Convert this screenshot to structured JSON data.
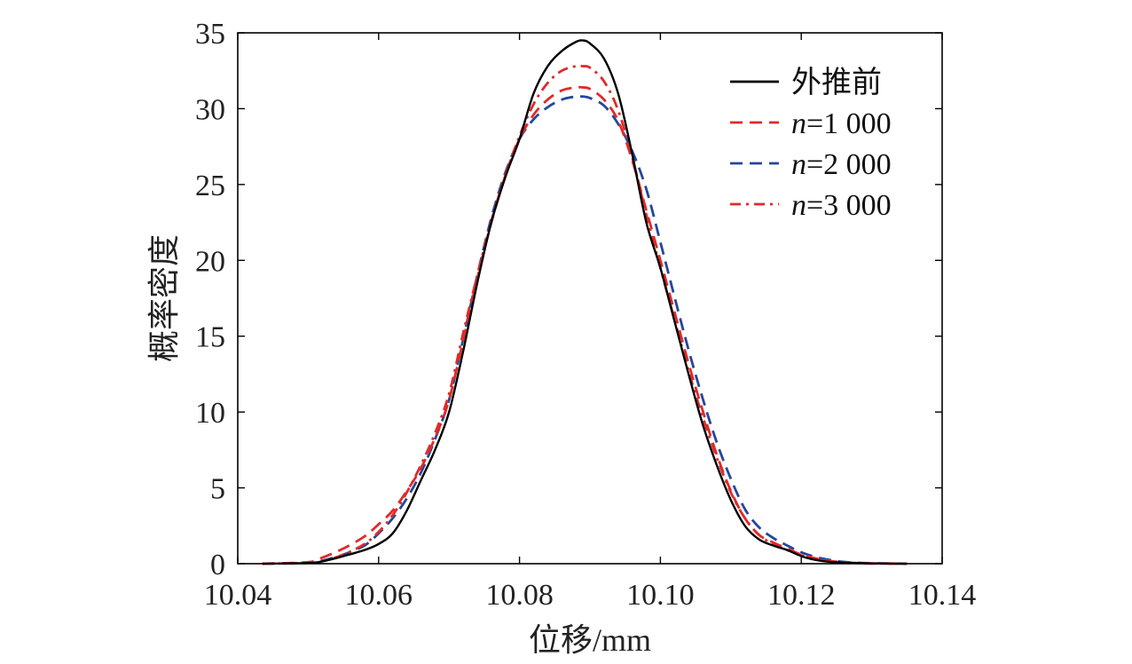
{
  "chart_data": {
    "type": "line",
    "xlabel": "位移/mm",
    "ylabel": "概率密度",
    "xlim": [
      10.04,
      10.14
    ],
    "ylim": [
      0,
      35
    ],
    "x_ticks": [
      "10.04",
      "10.06",
      "10.08",
      "10.10",
      "10.12",
      "10.14"
    ],
    "y_ticks": [
      "0",
      "5",
      "10",
      "15",
      "20",
      "25",
      "30",
      "35"
    ],
    "grid": false,
    "legend_position": "top-right",
    "series": [
      {
        "name": "外推前",
        "legend_prefix": "",
        "legend_suffix": "外推前",
        "color": "#000000",
        "dash": "solid",
        "x": [
          10.0435,
          10.05,
          10.052,
          10.055,
          10.058,
          10.06,
          10.062,
          10.064,
          10.066,
          10.068,
          10.07,
          10.072,
          10.074,
          10.076,
          10.078,
          10.08,
          10.082,
          10.084,
          10.086,
          10.088,
          10.089,
          10.09,
          10.092,
          10.094,
          10.096,
          10.098,
          10.1,
          10.102,
          10.104,
          10.106,
          10.108,
          10.11,
          10.112,
          10.114,
          10.116,
          10.118,
          10.12,
          10.122,
          10.124,
          10.126,
          10.128,
          10.13,
          10.135
        ],
        "y": [
          0,
          0.05,
          0.15,
          0.5,
          0.9,
          1.3,
          2.0,
          3.5,
          5.5,
          7.5,
          10.0,
          14.0,
          18.5,
          22.5,
          25.5,
          28.0,
          31.0,
          32.8,
          33.8,
          34.4,
          34.5,
          34.3,
          33.3,
          31.0,
          27.0,
          22.5,
          19.5,
          16.0,
          12.5,
          9.2,
          6.5,
          4.2,
          2.5,
          1.6,
          1.2,
          0.9,
          0.5,
          0.25,
          0.12,
          0.07,
          0.04,
          0.02,
          0
        ]
      },
      {
        "name": "n=1 000",
        "legend_prefix": "n",
        "legend_suffix": "=1 000",
        "color": "#e02a2a",
        "dash": "dashed",
        "x": [
          10.0435,
          10.05,
          10.052,
          10.055,
          10.058,
          10.06,
          10.062,
          10.064,
          10.066,
          10.068,
          10.07,
          10.072,
          10.074,
          10.076,
          10.078,
          10.08,
          10.082,
          10.084,
          10.086,
          10.088,
          10.089,
          10.09,
          10.092,
          10.094,
          10.096,
          10.098,
          10.1,
          10.102,
          10.104,
          10.106,
          10.108,
          10.11,
          10.112,
          10.114,
          10.116,
          10.118,
          10.12,
          10.122,
          10.124,
          10.126,
          10.128,
          10.13,
          10.135
        ],
        "y": [
          0,
          0.1,
          0.4,
          1.0,
          1.8,
          2.6,
          3.5,
          4.8,
          6.3,
          8.3,
          10.8,
          14.7,
          18.8,
          22.5,
          25.6,
          28.0,
          29.6,
          30.6,
          31.2,
          31.4,
          31.4,
          31.3,
          30.6,
          29.2,
          26.6,
          23.3,
          20.0,
          16.6,
          13.2,
          10.1,
          7.2,
          4.8,
          3.0,
          1.9,
          1.4,
          1.0,
          0.6,
          0.35,
          0.18,
          0.09,
          0.04,
          0.02,
          0
        ]
      },
      {
        "name": "n=2 000",
        "legend_prefix": "n",
        "legend_suffix": "=2 000",
        "color": "#23479a",
        "dash": "dashed",
        "x": [
          10.0435,
          10.05,
          10.052,
          10.055,
          10.058,
          10.06,
          10.062,
          10.064,
          10.066,
          10.068,
          10.07,
          10.072,
          10.074,
          10.076,
          10.078,
          10.08,
          10.082,
          10.084,
          10.086,
          10.088,
          10.089,
          10.09,
          10.092,
          10.094,
          10.096,
          10.098,
          10.1,
          10.102,
          10.104,
          10.106,
          10.108,
          10.11,
          10.112,
          10.114,
          10.116,
          10.118,
          10.12,
          10.122,
          10.124,
          10.126,
          10.128,
          10.13,
          10.135
        ],
        "y": [
          0,
          0.05,
          0.2,
          0.6,
          1.2,
          2.0,
          3.0,
          4.3,
          6.0,
          8.2,
          10.8,
          14.8,
          19.0,
          22.8,
          25.8,
          28.0,
          29.3,
          30.1,
          30.6,
          30.8,
          30.8,
          30.7,
          30.2,
          29.0,
          27.2,
          24.7,
          21.2,
          17.6,
          14.1,
          10.9,
          8.0,
          5.6,
          3.6,
          2.4,
          1.7,
          1.2,
          0.75,
          0.45,
          0.25,
          0.12,
          0.06,
          0.03,
          0
        ]
      },
      {
        "name": "n=3 000",
        "legend_prefix": "n",
        "legend_suffix": "=3 000",
        "color": "#e02a2a",
        "dash": "dashdot",
        "x": [
          10.0435,
          10.05,
          10.052,
          10.055,
          10.058,
          10.06,
          10.062,
          10.064,
          10.066,
          10.068,
          10.07,
          10.072,
          10.074,
          10.076,
          10.078,
          10.08,
          10.082,
          10.084,
          10.086,
          10.088,
          10.089,
          10.09,
          10.092,
          10.094,
          10.096,
          10.098,
          10.1,
          10.102,
          10.104,
          10.106,
          10.108,
          10.11,
          10.112,
          10.114,
          10.116,
          10.118,
          10.12,
          10.122,
          10.124,
          10.126,
          10.128,
          10.13,
          10.135
        ],
        "y": [
          0,
          0.05,
          0.15,
          0.6,
          1.3,
          2.1,
          3.2,
          4.7,
          6.5,
          8.6,
          11.2,
          15.2,
          19.0,
          22.6,
          25.6,
          28.2,
          30.3,
          31.7,
          32.5,
          32.8,
          32.8,
          32.7,
          31.8,
          29.9,
          26.8,
          23.0,
          19.5,
          16.1,
          12.7,
          9.7,
          7.0,
          4.7,
          3.0,
          1.9,
          1.3,
          0.9,
          0.55,
          0.3,
          0.15,
          0.07,
          0.03,
          0.01,
          0
        ]
      }
    ]
  }
}
